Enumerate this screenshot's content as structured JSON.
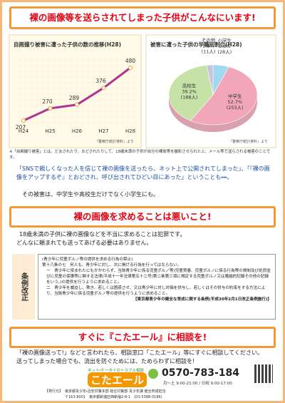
{
  "header": {
    "title": "裸の画像等を送らされてしまった子供がこんなにいます!"
  },
  "chart_data": [
    {
      "type": "line",
      "title": "自画撮り被害に遭った子供の数の推移(H28)",
      "categories": [
        "H24",
        "H25",
        "H26",
        "H27",
        "H28"
      ],
      "values": [
        207,
        270,
        289,
        376,
        480
      ],
      "color": "#b0338f",
      "source": "『警察庁統計資料』より"
    },
    {
      "type": "pie",
      "title": "被害に遭った子供の学職別割合(H28)",
      "categories": [
        "小学生",
        "中学生",
        "高校生",
        "その他"
      ],
      "values": [
        5.8,
        52.7,
        39.2,
        2.3
      ],
      "value_labels": [
        "5.8%",
        "52.7%",
        "39.2%",
        "2.3%"
      ],
      "count_labels": [
        "(28人)",
        "(253人)",
        "(188人)",
        "(11人)"
      ],
      "colors": [
        "#9fd8ef",
        "#f2a7b8",
        "#c6e2a6",
        "#c9c3e0"
      ],
      "source": "『警察庁統計資料』より"
    }
  ],
  "footnote": "※「自画撮り被害」とは、だまされたり、おどされたりして、18歳未満の子供が自分の裸体等を撮影させられた上、メール等で送らされる被害のことです。",
  "intro": {
    "paragraph": "「SNSで親しくなった人を信じて裸の画像を送ったら、ネット上で公開されてしまった」、「『裸の画像をアップするぞ』とおどされ、呼び出されてひどい目にあった」ということも・・・。",
    "note": "その被害は、中学生や高校生だけでなく小学生にも。"
  },
  "section2": {
    "heading": "裸の画像を求めることは悪いこと!",
    "lines": [
      "18歳未満の子供に裸の画像などを不当に求めることは犯罪です。",
      "どんなに頼まれても送ってあげる必要はありません。"
    ],
    "law": {
      "label": "条例改正",
      "caption": "(青少年に児童ポルノ等の提供を求める行為の禁止)",
      "article": "第十八条の七　何人も、青少年に対し、次に掲げる行為を行ってはならない。",
      "items": [
        "一　青少年に拒まれたにもかかわらず、当該青少年に係る児童ポルノ等(児童買春、児童ポルノに係る行為等の規制及び処罰並びに児童の保護等に関する法律(平成十一年法律第五十二号)第二条第三項に規定する児童ポルノ又は電磁的記録その他の記録をいう。)の提供を行うように求めること。",
        "二　青少年を威迫し、欺き、若しくは困惑させ、又は青少年に対し対価を供与し、若しくはその供与の約束をする方法により、当該青少年に係る児童ポルノ等の提供を行うように求めること。"
      ],
      "citation": "【東京都青少年の健全な育成に関する条例(平成30年2月1日改正条例施行)】"
    }
  },
  "section3": {
    "heading": "すぐに『こたエール』に相談を!",
    "lines": [
      "「裸の画像送って!」などと言われたら、相談窓口「こたエール」等にすぐに相談してください。",
      "送ってしまった場合でも、流出を防ぐためには、ためらわずに相談を!"
    ]
  },
  "contact": {
    "tagline": "ネット・ケータイのトラブル相談",
    "name": "こたエール",
    "phone": "0570-783-184",
    "hours": "月～土 9:00-21:00 / 日祝 9:00-17:00"
  },
  "publisher": {
    "label": "【発行元】",
    "org": "東京都青少年・治安対策本部 総合対策部 青少年課 健全育成担当",
    "address": "〒163-8001　東京都新宿区西新宿2-8-1　(03-5388-3186)"
  }
}
